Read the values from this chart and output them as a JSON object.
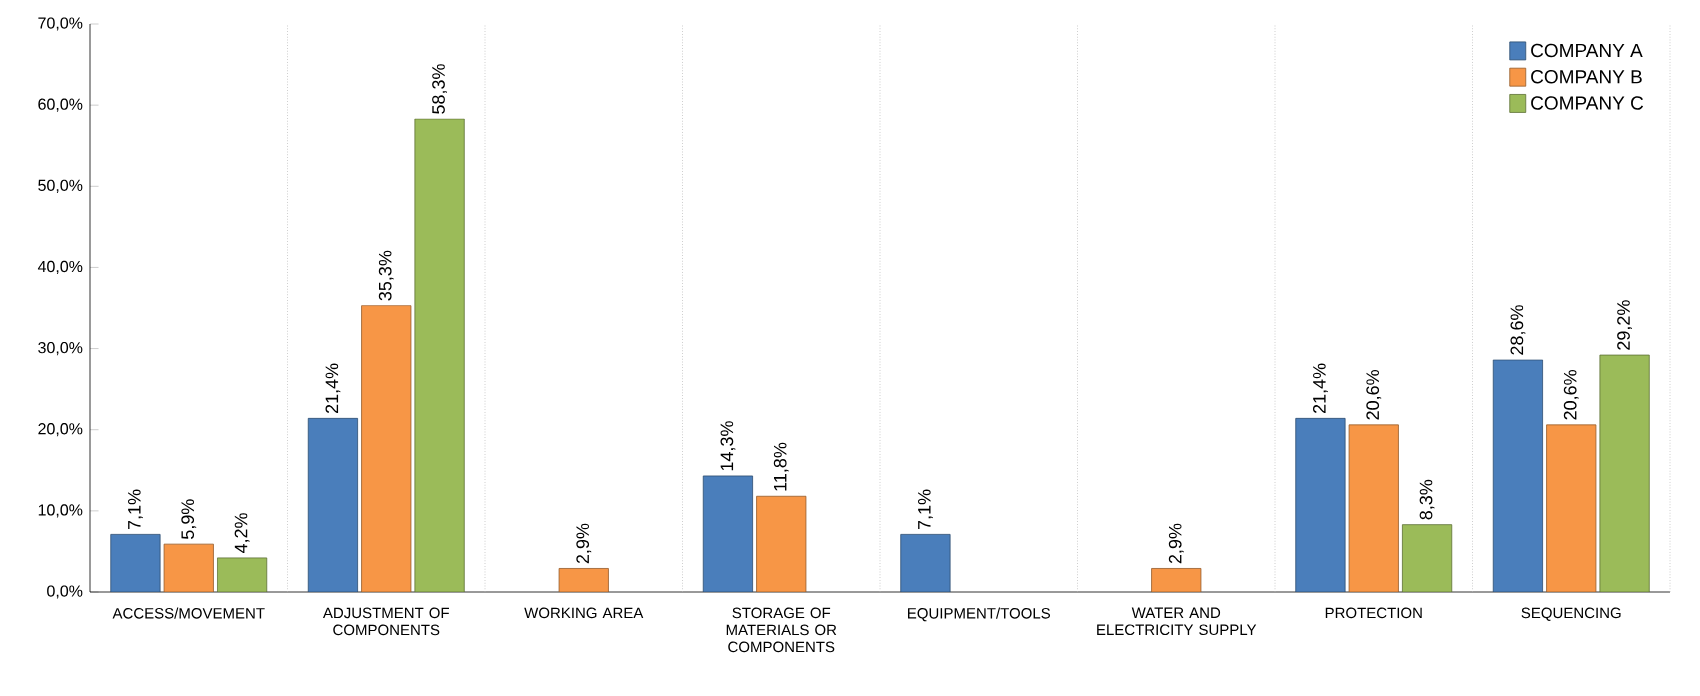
{
  "chart_data": {
    "type": "bar",
    "categories": [
      "ACCESS/MOVEMENT",
      "ADJUSTMENT OF COMPONENTS",
      "WORKING AREA",
      "STORAGE OF MATERIALS OR COMPONENTS",
      "EQUIPMENT/TOOLS",
      "WATER AND ELECTRICITY SUPPLY",
      "PROTECTION",
      "SEQUENCING"
    ],
    "series": [
      {
        "name": "COMPANY A",
        "color": "#4a7ebb",
        "values": [
          7.1,
          21.4,
          null,
          14.3,
          7.1,
          null,
          21.4,
          28.6
        ],
        "value_labels": [
          "7,1%",
          "21,4%",
          null,
          "14,3%",
          "7,1%",
          null,
          "21,4%",
          "28,6%"
        ]
      },
      {
        "name": "COMPANY B",
        "color": "#f79646",
        "values": [
          5.9,
          35.3,
          2.9,
          11.8,
          null,
          2.9,
          20.6,
          20.6
        ],
        "value_labels": [
          "5,9%",
          "35,3%",
          "2,9%",
          "11,8%",
          null,
          "2,9%",
          "20,6%",
          "20,6%"
        ]
      },
      {
        "name": "COMPANY  C",
        "color": "#9bbb59",
        "values": [
          4.2,
          58.3,
          null,
          null,
          null,
          null,
          8.3,
          29.2
        ],
        "value_labels": [
          "4,2%",
          "58,3%",
          null,
          null,
          null,
          null,
          "8,3%",
          "29,2%"
        ]
      }
    ],
    "ylim": [
      0,
      70
    ],
    "yticks": [
      {
        "value": 0,
        "label": "0,0%"
      },
      {
        "value": 10,
        "label": "10,0%"
      },
      {
        "value": 20,
        "label": "20,0%"
      },
      {
        "value": 30,
        "label": "30,0%"
      },
      {
        "value": 40,
        "label": "40,0%"
      },
      {
        "value": 50,
        "label": "50,0%"
      },
      {
        "value": 60,
        "label": "60,0%"
      },
      {
        "value": 70,
        "label": "70,0%"
      }
    ],
    "grid": "x",
    "legend": "top right"
  }
}
